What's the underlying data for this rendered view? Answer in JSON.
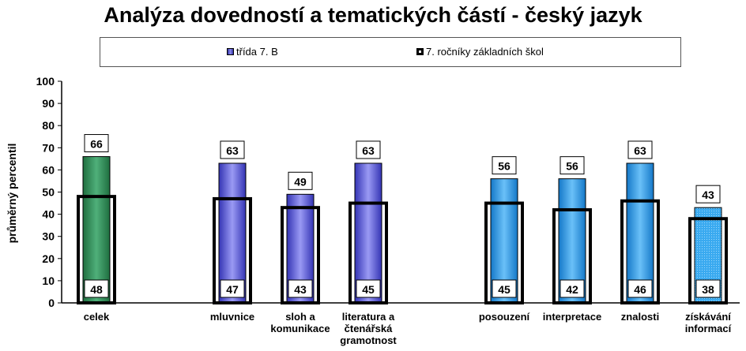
{
  "chart_data": {
    "type": "bar",
    "title": "Analýza dovedností a tematických částí - český jazyk",
    "ylabel": "průměrný percentil",
    "xlabel": "",
    "ylim": [
      0,
      100
    ],
    "yticks": [
      0,
      10,
      20,
      30,
      40,
      50,
      60,
      70,
      80,
      90,
      100
    ],
    "grid": false,
    "legend_position": "top",
    "categories": [
      {
        "label": [
          "celek"
        ],
        "class_value": 66,
        "all_value": 48,
        "color": "green"
      },
      {
        "label": [
          "mluvnice"
        ],
        "class_value": 63,
        "all_value": 47,
        "color": "purple"
      },
      {
        "label": [
          "sloh a",
          "komunikace"
        ],
        "class_value": 49,
        "all_value": 43,
        "color": "purple"
      },
      {
        "label": [
          "literatura a",
          "čtenářská",
          "gramotnost"
        ],
        "class_value": 63,
        "all_value": 45,
        "color": "purple"
      },
      {
        "label": [
          "posouzení"
        ],
        "class_value": 56,
        "all_value": 45,
        "color": "blue"
      },
      {
        "label": [
          "interpretace"
        ],
        "class_value": 56,
        "all_value": 42,
        "color": "blue"
      },
      {
        "label": [
          "znalosti"
        ],
        "class_value": 63,
        "all_value": 46,
        "color": "blue"
      },
      {
        "label": [
          "získávání",
          "informací"
        ],
        "class_value": 43,
        "all_value": 38,
        "color": "lightblue"
      }
    ],
    "series": [
      {
        "name": "třída  7. B"
      },
      {
        "name": "7. ročníky základních škol"
      }
    ],
    "colors": {
      "green": "#2e8b57",
      "purple": "#5858d8",
      "blue": "#2a9ae6",
      "lightblue": "#3aaaf0"
    }
  }
}
